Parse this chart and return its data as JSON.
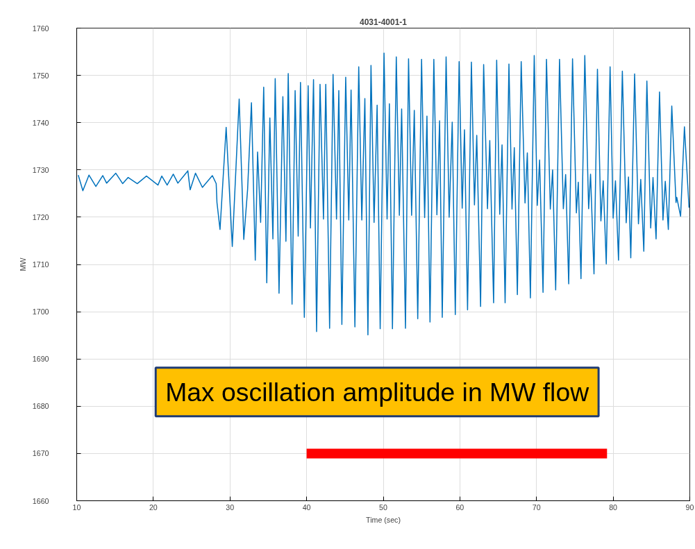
{
  "chart_data": {
    "type": "line",
    "title": "4031-4001-1",
    "xlabel": "Time (sec)",
    "ylabel": "MW",
    "xlim": [
      10,
      90
    ],
    "xticks": [
      10,
      20,
      30,
      40,
      50,
      60,
      70,
      80,
      90
    ],
    "ylim": [
      1660,
      1760
    ],
    "yticks": [
      1660,
      1670,
      1680,
      1690,
      1700,
      1710,
      1720,
      1730,
      1740,
      1750,
      1760
    ],
    "grid": true,
    "annotations": [
      "Max oscillation amplitude in MW flow"
    ],
    "series": [
      {
        "color": "#0072bd",
        "x": [
          10.2,
          10.8,
          11.6,
          12.5,
          13.4,
          13.9,
          15.1,
          16.0,
          16.7,
          17.9,
          19.1,
          20.6,
          21.1,
          21.8,
          22.6,
          23.2,
          24.5,
          24.8,
          25.5,
          26.4,
          27.7,
          28.2,
          28.3,
          28.7,
          29.5,
          30.3,
          31.2,
          31.8,
          32.3,
          32.8,
          33.3,
          33.6,
          34.0,
          34.4,
          34.8,
          35.2,
          35.6,
          35.9,
          36.4,
          36.9,
          37.3,
          37.6,
          38.1,
          38.5,
          38.9,
          39.2,
          39.7,
          40.2,
          40.5,
          40.9,
          41.3,
          41.75,
          42.2,
          42.5,
          43.0,
          43.45,
          43.9,
          44.2,
          44.6,
          45.1,
          45.5,
          45.8,
          46.3,
          46.8,
          47.2,
          47.6,
          48.0,
          48.4,
          48.8,
          49.2,
          49.6,
          50.1,
          50.5,
          50.8,
          51.2,
          51.7,
          52.1,
          52.4,
          52.9,
          53.3,
          53.7,
          54.05,
          54.5,
          55.0,
          55.4,
          55.7,
          56.1,
          56.6,
          57.0,
          57.35,
          57.7,
          58.2,
          58.6,
          59.0,
          59.4,
          59.9,
          60.3,
          60.6,
          61.0,
          61.5,
          61.9,
          62.2,
          62.7,
          63.1,
          63.6,
          63.9,
          64.4,
          64.8,
          65.2,
          65.5,
          65.9,
          66.4,
          66.8,
          67.1,
          67.5,
          68.0,
          68.5,
          68.8,
          69.2,
          69.7,
          70.1,
          70.4,
          70.85,
          71.3,
          71.8,
          72.1,
          72.5,
          73.0,
          73.5,
          73.8,
          74.2,
          74.7,
          75.2,
          75.45,
          75.8,
          76.3,
          76.8,
          77.05,
          77.5,
          77.95,
          78.4,
          78.7,
          79.1,
          79.6,
          80.0,
          80.3,
          80.7,
          81.2,
          81.7,
          82.0,
          82.3,
          82.8,
          83.3,
          83.6,
          84.0,
          84.4,
          84.9,
          85.2,
          85.6,
          86.05,
          86.5,
          86.8,
          87.2,
          87.65,
          88.2,
          88.3,
          88.8,
          89.3,
          89.9
        ],
        "values": [
          1728.9,
          1725.6,
          1728.9,
          1726.5,
          1728.8,
          1727.2,
          1729.3,
          1727.1,
          1728.4,
          1727.1,
          1728.7,
          1726.8,
          1728.7,
          1726.8,
          1729.1,
          1727.2,
          1729.8,
          1725.8,
          1729.3,
          1726.3,
          1728.8,
          1727.1,
          1723.1,
          1717.4,
          1739.0,
          1713.8,
          1745.0,
          1715.3,
          1725.9,
          1744.2,
          1710.9,
          1733.8,
          1718.9,
          1747.5,
          1706.1,
          1741.0,
          1715.4,
          1749.3,
          1703.9,
          1745.5,
          1714.9,
          1750.4,
          1701.6,
          1746.8,
          1716.0,
          1748.5,
          1698.8,
          1747.8,
          1717.7,
          1749.1,
          1695.8,
          1748.1,
          1719.6,
          1748.1,
          1696.5,
          1750.2,
          1719.6,
          1746.8,
          1697.3,
          1749.6,
          1719.4,
          1746.9,
          1696.8,
          1751.8,
          1719.4,
          1745.1,
          1695.1,
          1752.1,
          1718.9,
          1743.7,
          1696.4,
          1754.7,
          1719.6,
          1744.0,
          1696.4,
          1753.9,
          1720.4,
          1742.9,
          1696.5,
          1753.5,
          1720.4,
          1742.6,
          1698.5,
          1753.4,
          1719.9,
          1741.4,
          1697.8,
          1753.4,
          1720.5,
          1740.4,
          1698.8,
          1753.9,
          1720.0,
          1740.1,
          1699.4,
          1752.9,
          1721.9,
          1738.5,
          1700.4,
          1752.8,
          1722.6,
          1737.3,
          1701.1,
          1752.3,
          1721.8,
          1736.2,
          1701.9,
          1753.2,
          1720.6,
          1735.3,
          1701.9,
          1752.4,
          1721.7,
          1734.7,
          1703.6,
          1752.9,
          1723.0,
          1733.6,
          1702.9,
          1754.2,
          1722.5,
          1732.1,
          1704.1,
          1753.4,
          1721.7,
          1730.0,
          1704.6,
          1753.4,
          1721.8,
          1729.0,
          1705.9,
          1753.5,
          1720.9,
          1727.4,
          1707.0,
          1754.2,
          1721.8,
          1729.1,
          1708.0,
          1751.3,
          1719.2,
          1727.7,
          1710.1,
          1751.8,
          1719.8,
          1727.7,
          1710.9,
          1750.9,
          1718.8,
          1728.5,
          1711.4,
          1750.3,
          1718.6,
          1728.0,
          1712.8,
          1748.8,
          1717.7,
          1728.4,
          1715.4,
          1746.5,
          1719.4,
          1727.6,
          1717.4,
          1743.5,
          1723.1,
          1724.2,
          1720.2,
          1739.1,
          1722.0
        ]
      },
      {
        "color": "#ff0000",
        "x": [
          40.0,
          79.2
        ],
        "values": [
          1670,
          1670
        ]
      }
    ]
  }
}
